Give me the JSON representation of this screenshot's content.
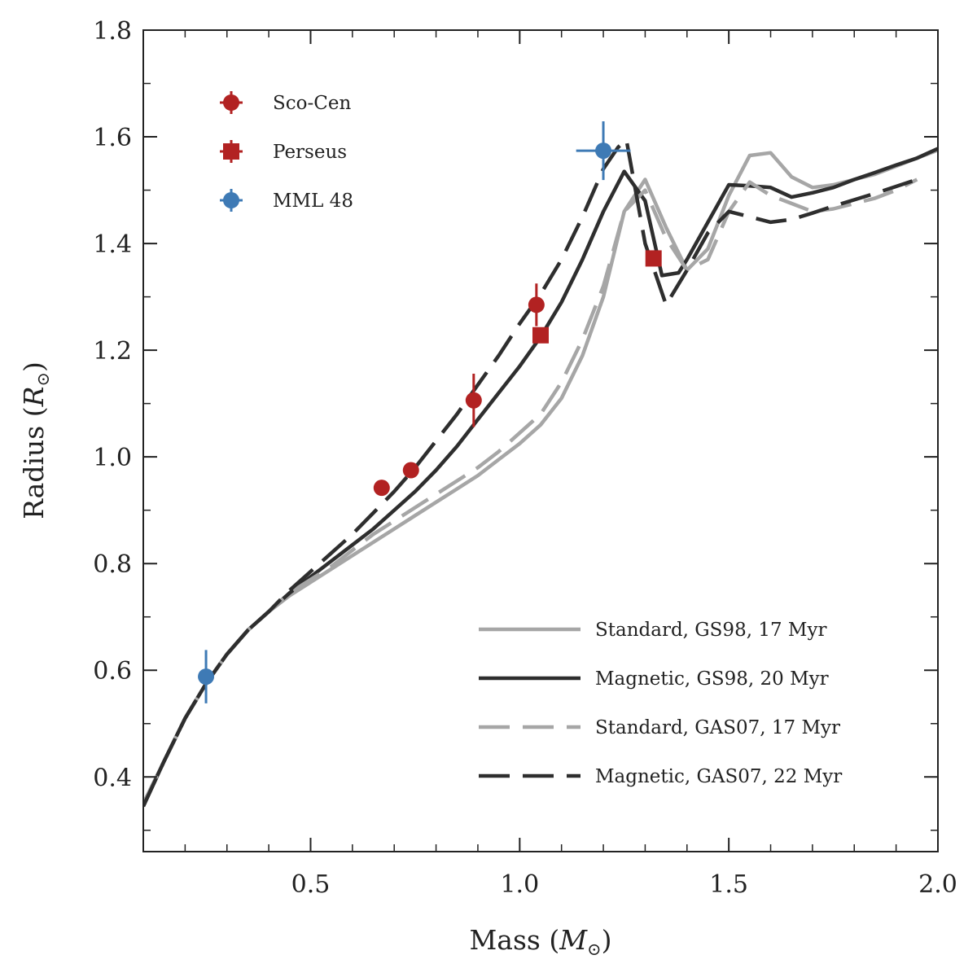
{
  "chart_data": {
    "type": "line",
    "title": "",
    "xlabel": "Mass (",
    "xlabel_symbol": "M",
    "xlabel_sub": "⊙",
    "xlabel_close": ")",
    "ylabel": "Radius (",
    "ylabel_symbol": "R",
    "ylabel_sub": "⊙",
    "ylabel_close": ")",
    "xlim": [
      0.1,
      2.0
    ],
    "ylim": [
      0.26,
      1.8
    ],
    "xticks": [
      0.5,
      1.0,
      1.5,
      2.0
    ],
    "xtick_labels": [
      "0.5",
      "1.0",
      "1.5",
      "2.0"
    ],
    "yticks": [
      0.4,
      0.6,
      0.8,
      1.0,
      1.2,
      1.4,
      1.6,
      1.8
    ],
    "ytick_labels": [
      "0.4",
      "0.6",
      "0.8",
      "1.0",
      "1.2",
      "1.4",
      "1.6",
      "1.8"
    ],
    "xminor_step": 0.1,
    "yminor_step": 0.1,
    "series": [
      {
        "name": "Standard, GS98, 17 Myr",
        "color": "#a6a6a6",
        "dash": "solid",
        "x": [
          0.1,
          0.15,
          0.2,
          0.25,
          0.3,
          0.35,
          0.4,
          0.45,
          0.5,
          0.55,
          0.6,
          0.65,
          0.7,
          0.75,
          0.8,
          0.85,
          0.9,
          0.95,
          1.0,
          1.05,
          1.1,
          1.15,
          1.2,
          1.25,
          1.3,
          1.35,
          1.4,
          1.45,
          1.5,
          1.55,
          1.6,
          1.65,
          1.7,
          1.75,
          1.8,
          1.85,
          1.9,
          1.95,
          2.0
        ],
        "y": [
          0.35,
          0.43,
          0.51,
          0.575,
          0.63,
          0.675,
          0.71,
          0.74,
          0.765,
          0.79,
          0.815,
          0.84,
          0.865,
          0.89,
          0.915,
          0.94,
          0.965,
          0.995,
          1.025,
          1.06,
          1.11,
          1.19,
          1.3,
          1.46,
          1.52,
          1.43,
          1.35,
          1.39,
          1.49,
          1.565,
          1.57,
          1.525,
          1.505,
          1.51,
          1.52,
          1.53,
          1.545,
          1.56,
          1.575
        ]
      },
      {
        "name": "Magnetic, GS98, 20 Myr",
        "color": "#2e2e2e",
        "dash": "solid",
        "x": [
          0.1,
          0.15,
          0.2,
          0.25,
          0.3,
          0.35,
          0.4,
          0.45,
          0.5,
          0.55,
          0.6,
          0.65,
          0.7,
          0.75,
          0.8,
          0.85,
          0.9,
          0.95,
          1.0,
          1.05,
          1.1,
          1.15,
          1.2,
          1.25,
          1.3,
          1.34,
          1.38,
          1.4,
          1.45,
          1.5,
          1.55,
          1.6,
          1.65,
          1.7,
          1.75,
          1.8,
          1.85,
          1.9,
          1.95,
          2.0
        ],
        "y": [
          0.345,
          0.43,
          0.51,
          0.575,
          0.63,
          0.675,
          0.71,
          0.745,
          0.775,
          0.805,
          0.835,
          0.865,
          0.9,
          0.935,
          0.975,
          1.02,
          1.07,
          1.12,
          1.17,
          1.225,
          1.29,
          1.37,
          1.46,
          1.535,
          1.48,
          1.34,
          1.345,
          1.37,
          1.44,
          1.51,
          1.508,
          1.505,
          1.487,
          1.495,
          1.505,
          1.52,
          1.533,
          1.547,
          1.56,
          1.578
        ]
      },
      {
        "name": "Standard, GAS07, 17 Myr",
        "color": "#a6a6a6",
        "dash": "dashed",
        "x": [
          0.1,
          0.15,
          0.2,
          0.25,
          0.3,
          0.35,
          0.4,
          0.45,
          0.5,
          0.55,
          0.6,
          0.65,
          0.7,
          0.75,
          0.8,
          0.85,
          0.9,
          0.95,
          1.0,
          1.05,
          1.1,
          1.15,
          1.2,
          1.25,
          1.3,
          1.35,
          1.4,
          1.45,
          1.5,
          1.55,
          1.6,
          1.65,
          1.7,
          1.75,
          1.8,
          1.85,
          1.9,
          1.95
        ],
        "y": [
          0.35,
          0.43,
          0.51,
          0.575,
          0.63,
          0.675,
          0.71,
          0.745,
          0.77,
          0.795,
          0.825,
          0.855,
          0.88,
          0.905,
          0.93,
          0.955,
          0.98,
          1.01,
          1.045,
          1.08,
          1.14,
          1.22,
          1.32,
          1.46,
          1.5,
          1.41,
          1.35,
          1.37,
          1.46,
          1.515,
          1.49,
          1.475,
          1.46,
          1.465,
          1.475,
          1.485,
          1.5,
          1.52
        ]
      },
      {
        "name": "Magnetic, GAS07, 22 Myr",
        "color": "#2e2e2e",
        "dash": "dashed",
        "x": [
          0.1,
          0.15,
          0.2,
          0.25,
          0.3,
          0.35,
          0.4,
          0.45,
          0.5,
          0.55,
          0.6,
          0.65,
          0.7,
          0.75,
          0.8,
          0.85,
          0.9,
          0.95,
          1.0,
          1.05,
          1.1,
          1.15,
          1.2,
          1.235,
          1.255,
          1.3,
          1.35,
          1.4,
          1.45,
          1.5,
          1.55,
          1.6,
          1.65,
          1.7,
          1.75,
          1.8,
          1.85,
          1.9,
          1.95
        ],
        "y": [
          0.345,
          0.43,
          0.51,
          0.575,
          0.63,
          0.675,
          0.71,
          0.75,
          0.785,
          0.82,
          0.855,
          0.895,
          0.935,
          0.98,
          1.03,
          1.08,
          1.135,
          1.19,
          1.25,
          1.305,
          1.37,
          1.45,
          1.54,
          1.58,
          1.595,
          1.4,
          1.285,
          1.35,
          1.42,
          1.46,
          1.45,
          1.44,
          1.445,
          1.457,
          1.47,
          1.482,
          1.494,
          1.507,
          1.52
        ]
      }
    ],
    "points": [
      {
        "name": "Sco-Cen",
        "color": "#b22222",
        "marker": "circle",
        "data": [
          {
            "x": 0.67,
            "y": 0.942
          },
          {
            "x": 0.74,
            "y": 0.975
          },
          {
            "x": 0.89,
            "y": 1.106,
            "yerr": 0.05
          },
          {
            "x": 1.04,
            "y": 1.285,
            "yerr": 0.04
          }
        ]
      },
      {
        "name": "Perseus",
        "color": "#b22222",
        "marker": "square",
        "data": [
          {
            "x": 1.05,
            "y": 1.228
          },
          {
            "x": 1.32,
            "y": 1.372
          }
        ]
      },
      {
        "name": "MML 48",
        "color": "#3e7ab5",
        "marker": "circle",
        "data": [
          {
            "x": 0.25,
            "y": 0.588,
            "yerr": 0.05
          },
          {
            "x": 1.2,
            "y": 1.574,
            "yerr": 0.055,
            "xerr": 0.065
          }
        ]
      }
    ],
    "legend_points_location": "upper-left",
    "legend_lines_location": "lower-right",
    "grid": false
  }
}
